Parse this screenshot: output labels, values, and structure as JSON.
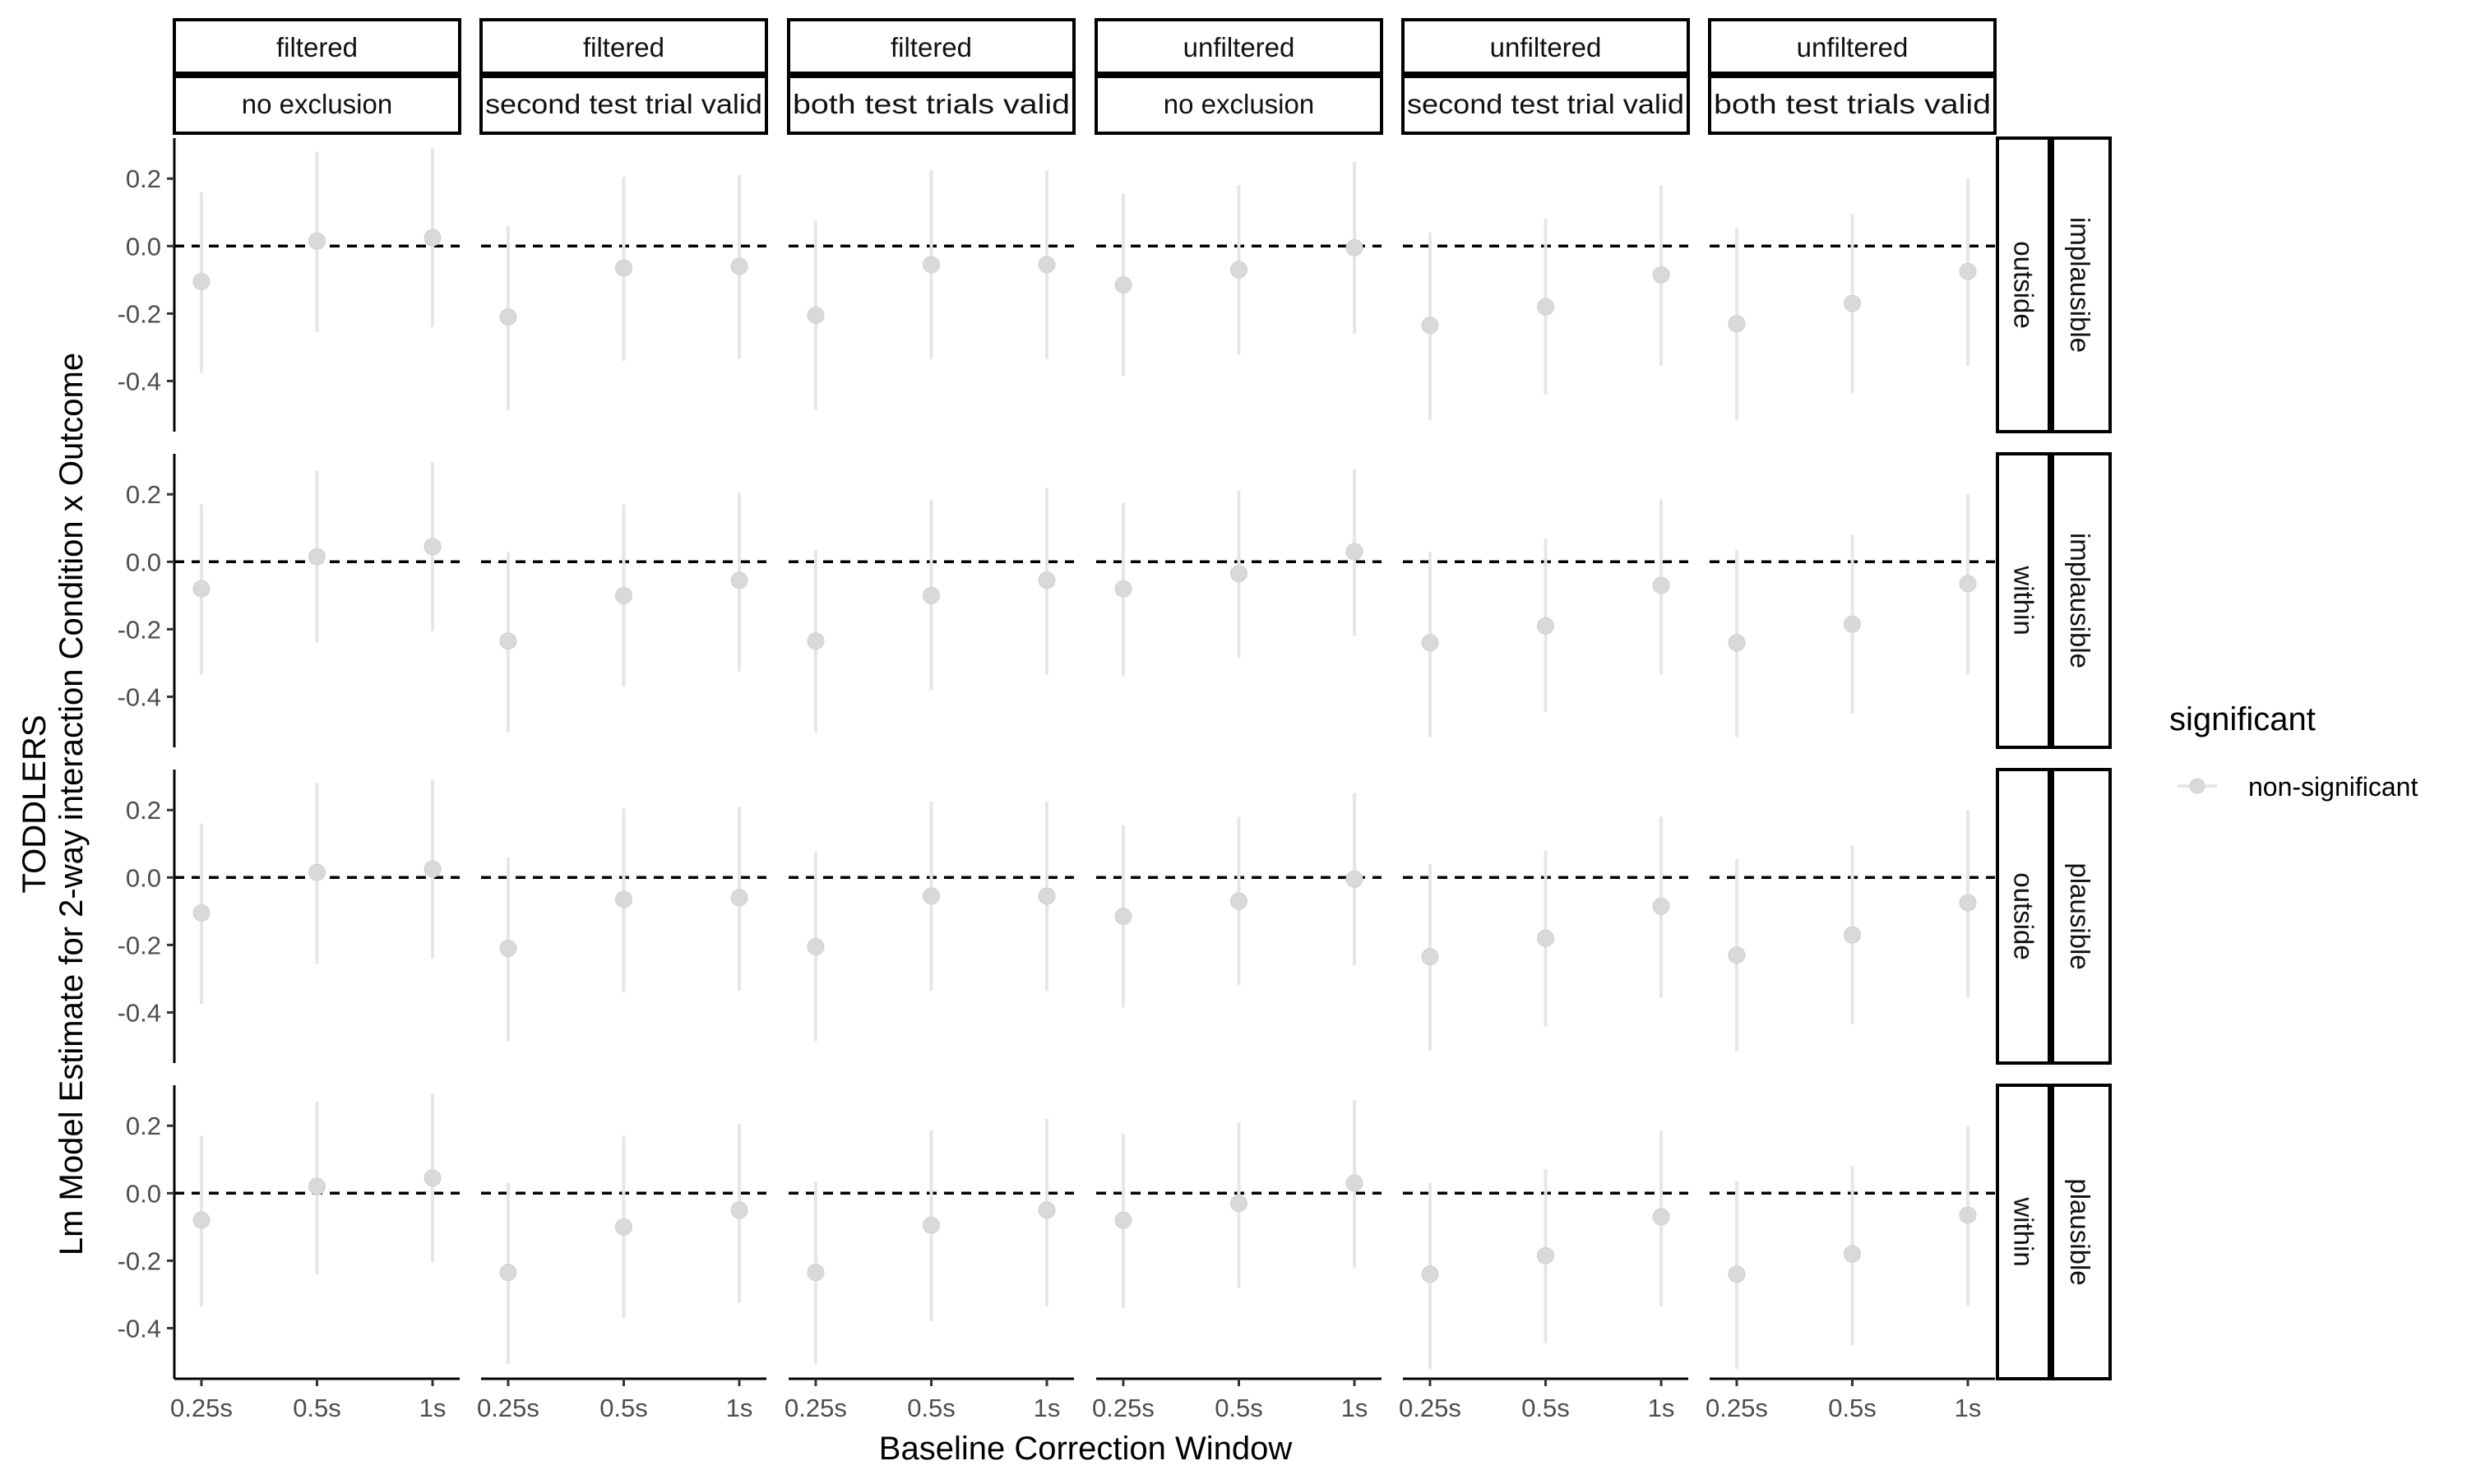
{
  "chart_data": {
    "type": "scatter",
    "xlabel": "Baseline Correction Window",
    "ylabel_lines": [
      "TODDLERS",
      "Lm Model Estimate for 2-way interaction Condition x Outcome"
    ],
    "ylim": [
      -0.55,
      0.32
    ],
    "yticks": [
      "0.2",
      "0.0",
      "-0.2",
      "-0.4"
    ],
    "ytick_values": [
      0.2,
      0.0,
      -0.2,
      -0.4
    ],
    "reference_line": 0.0,
    "x_categories": [
      "0.25s",
      "0.5s",
      "1s"
    ],
    "col_strips": [
      {
        "top": "filtered",
        "bottom": "no exclusion"
      },
      {
        "top": "filtered",
        "bottom": "second test trial valid"
      },
      {
        "top": "filtered",
        "bottom": "both test trials valid"
      },
      {
        "top": "unfiltered",
        "bottom": "no exclusion"
      },
      {
        "top": "unfiltered",
        "bottom": "second test trial valid"
      },
      {
        "top": "unfiltered",
        "bottom": "both test trials valid"
      }
    ],
    "row_strips": [
      {
        "inner": "outside",
        "outer": "implausible"
      },
      {
        "inner": "within",
        "outer": "implausible"
      },
      {
        "inner": "outside",
        "outer": "plausible"
      },
      {
        "inner": "within",
        "outer": "plausible"
      }
    ],
    "legend": {
      "title": "significant",
      "entries": [
        "non-significant"
      ],
      "position": "right"
    },
    "point_color": "#d9d9d9",
    "errorbar_color": "#e6e6e6",
    "panels": [
      [
        [
          [
            -0.105,
            -0.375,
            0.16
          ],
          [
            0.015,
            -0.255,
            0.28
          ],
          [
            0.025,
            -0.24,
            0.29
          ]
        ],
        [
          [
            -0.21,
            -0.485,
            0.06
          ],
          [
            -0.065,
            -0.34,
            0.205
          ],
          [
            -0.06,
            -0.335,
            0.21
          ]
        ],
        [
          [
            -0.205,
            -0.485,
            0.075
          ],
          [
            -0.055,
            -0.335,
            0.225
          ],
          [
            -0.055,
            -0.335,
            0.225
          ]
        ],
        [
          [
            -0.115,
            -0.385,
            0.155
          ],
          [
            -0.07,
            -0.32,
            0.18
          ],
          [
            -0.005,
            -0.26,
            0.25
          ]
        ],
        [
          [
            -0.235,
            -0.515,
            0.04
          ],
          [
            -0.18,
            -0.44,
            0.08
          ],
          [
            -0.085,
            -0.355,
            0.18
          ]
        ],
        [
          [
            -0.23,
            -0.515,
            0.055
          ],
          [
            -0.17,
            -0.435,
            0.095
          ],
          [
            -0.075,
            -0.355,
            0.2
          ]
        ]
      ],
      [
        [
          [
            -0.08,
            -0.335,
            0.17
          ],
          [
            0.015,
            -0.24,
            0.27
          ],
          [
            0.045,
            -0.205,
            0.295
          ]
        ],
        [
          [
            -0.235,
            -0.505,
            0.03
          ],
          [
            -0.1,
            -0.37,
            0.17
          ],
          [
            -0.055,
            -0.325,
            0.205
          ]
        ],
        [
          [
            -0.235,
            -0.505,
            0.035
          ],
          [
            -0.1,
            -0.38,
            0.185
          ],
          [
            -0.055,
            -0.335,
            0.22
          ]
        ],
        [
          [
            -0.08,
            -0.34,
            0.175
          ],
          [
            -0.035,
            -0.285,
            0.21
          ],
          [
            0.03,
            -0.22,
            0.275
          ]
        ],
        [
          [
            -0.24,
            -0.52,
            0.03
          ],
          [
            -0.19,
            -0.445,
            0.07
          ],
          [
            -0.07,
            -0.335,
            0.185
          ]
        ],
        [
          [
            -0.24,
            -0.52,
            0.035
          ],
          [
            -0.185,
            -0.45,
            0.08
          ],
          [
            -0.065,
            -0.335,
            0.2
          ]
        ]
      ],
      [
        [
          [
            -0.105,
            -0.375,
            0.16
          ],
          [
            0.015,
            -0.255,
            0.28
          ],
          [
            0.025,
            -0.24,
            0.29
          ]
        ],
        [
          [
            -0.21,
            -0.485,
            0.06
          ],
          [
            -0.065,
            -0.34,
            0.205
          ],
          [
            -0.06,
            -0.335,
            0.21
          ]
        ],
        [
          [
            -0.205,
            -0.485,
            0.075
          ],
          [
            -0.055,
            -0.335,
            0.225
          ],
          [
            -0.055,
            -0.335,
            0.225
          ]
        ],
        [
          [
            -0.115,
            -0.385,
            0.155
          ],
          [
            -0.07,
            -0.32,
            0.18
          ],
          [
            -0.005,
            -0.26,
            0.25
          ]
        ],
        [
          [
            -0.235,
            -0.515,
            0.04
          ],
          [
            -0.18,
            -0.44,
            0.08
          ],
          [
            -0.085,
            -0.355,
            0.18
          ]
        ],
        [
          [
            -0.23,
            -0.515,
            0.055
          ],
          [
            -0.17,
            -0.435,
            0.095
          ],
          [
            -0.075,
            -0.355,
            0.2
          ]
        ]
      ],
      [
        [
          [
            -0.08,
            -0.335,
            0.17
          ],
          [
            0.02,
            -0.24,
            0.27
          ],
          [
            0.045,
            -0.205,
            0.295
          ]
        ],
        [
          [
            -0.235,
            -0.505,
            0.03
          ],
          [
            -0.1,
            -0.37,
            0.17
          ],
          [
            -0.05,
            -0.325,
            0.205
          ]
        ],
        [
          [
            -0.235,
            -0.505,
            0.035
          ],
          [
            -0.095,
            -0.38,
            0.185
          ],
          [
            -0.05,
            -0.335,
            0.22
          ]
        ],
        [
          [
            -0.08,
            -0.34,
            0.175
          ],
          [
            -0.03,
            -0.28,
            0.21
          ],
          [
            0.03,
            -0.22,
            0.275
          ]
        ],
        [
          [
            -0.24,
            -0.52,
            0.03
          ],
          [
            -0.185,
            -0.445,
            0.07
          ],
          [
            -0.07,
            -0.335,
            0.185
          ]
        ],
        [
          [
            -0.24,
            -0.52,
            0.035
          ],
          [
            -0.18,
            -0.45,
            0.08
          ],
          [
            -0.065,
            -0.335,
            0.2
          ]
        ]
      ]
    ]
  }
}
